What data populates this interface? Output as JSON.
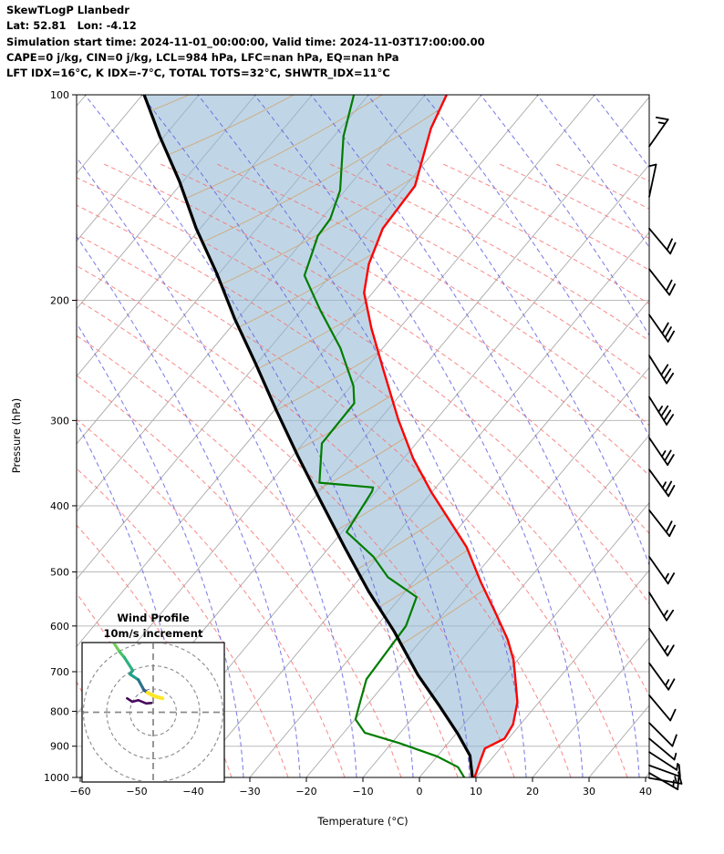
{
  "header": {
    "lines": [
      "SkewTLogP Llanbedr",
      "Lat: 52.81   Lon: -4.12",
      "Simulation start time: 2024-11-01_00:00:00, Valid time: 2024-11-03T17:00:00.00",
      "CAPE=0 j/kg, CIN=0 j/kg, LCL=984 hPa, LFC=nan hPa, EQ=nan hPa",
      "LFT IDX=16°C, K IDX=-7°C, TOTAL TOTS=32°C, SHWTR_IDX=11°C"
    ]
  },
  "colors": {
    "temperature": "#ff0000",
    "dewpoint": "#007d00",
    "parcel": "#000000",
    "shading": "#92b8d4",
    "dry_adiabat": "#f87070",
    "moist_adiabat": "#5d5de0",
    "isotherm": "#a9a9a9",
    "tan_line": "#cfa97e",
    "grid": "#bbbbbb"
  },
  "chart_data": {
    "type": "line",
    "subtype": "skewt-logp-sounding",
    "pressure_axis": {
      "label": "Pressure (hPa)",
      "ticks": [
        100,
        200,
        300,
        400,
        500,
        600,
        700,
        800,
        900,
        1000
      ],
      "range": [
        100,
        1000
      ],
      "scale": "log"
    },
    "temp_axis": {
      "label": "Temperature (°C)",
      "ticks": [
        -60,
        -50,
        -40,
        -30,
        -20,
        -10,
        0,
        10,
        20,
        30,
        40
      ],
      "range": [
        -60,
        40
      ]
    },
    "series": {
      "temperature": {
        "name": "temperature",
        "points": [
          [
            100,
            -96.2
          ],
          [
            112,
            -94.0
          ],
          [
            136,
            -88.3
          ],
          [
            157,
            -87.7
          ],
          [
            177,
            -84.9
          ],
          [
            195,
            -81.5
          ],
          [
            220,
            -74.9
          ],
          [
            252,
            -66.9
          ],
          [
            299,
            -56.7
          ],
          [
            341,
            -48.3
          ],
          [
            382,
            -40.1
          ],
          [
            460,
            -25.7
          ],
          [
            517,
            -18.1
          ],
          [
            573,
            -11.0
          ],
          [
            627,
            -4.9
          ],
          [
            672,
            -0.8
          ],
          [
            707,
            1.7
          ],
          [
            776,
            6.2
          ],
          [
            836,
            8.7
          ],
          [
            877,
            9.3
          ],
          [
            907,
            7.3
          ],
          [
            945,
            8.3
          ],
          [
            1005,
            9.9
          ]
        ]
      },
      "dewpoint": {
        "name": "dewpoint",
        "points": [
          [
            100,
            -112.6
          ],
          [
            115,
            -108.3
          ],
          [
            138,
            -100.9
          ],
          [
            152,
            -98.4
          ],
          [
            161,
            -98.1
          ],
          [
            171,
            -96.5
          ],
          [
            184,
            -94.6
          ],
          [
            207,
            -86.6
          ],
          [
            235,
            -77.5
          ],
          [
            267,
            -69.6
          ],
          [
            283,
            -66.9
          ],
          [
            324,
            -66.7
          ],
          [
            370,
            -61.3
          ],
          [
            376,
            -51.1
          ],
          [
            381,
            -50.7
          ],
          [
            437,
            -49.2
          ],
          [
            475,
            -40.8
          ],
          [
            509,
            -35.2
          ],
          [
            544,
            -27.2
          ],
          [
            600,
            -24.8
          ],
          [
            718,
            -23.9
          ],
          [
            774,
            -21.7
          ],
          [
            822,
            -19.9
          ],
          [
            860,
            -16.3
          ],
          [
            890,
            -8.8
          ],
          [
            932,
            0.1
          ],
          [
            966,
            5.3
          ],
          [
            1005,
            8.3
          ]
        ]
      },
      "parcel": {
        "name": "parcel",
        "points": [
          [
            100,
            -149.7
          ],
          [
            115,
            -140.8
          ],
          [
            134,
            -130.6
          ],
          [
            157,
            -120.7
          ],
          [
            183,
            -110.3
          ],
          [
            213,
            -100.5
          ],
          [
            248,
            -90.1
          ],
          [
            290,
            -79.6
          ],
          [
            338,
            -69.1
          ],
          [
            394,
            -58.3
          ],
          [
            460,
            -47.3
          ],
          [
            534,
            -36.5
          ],
          [
            611,
            -26.1
          ],
          [
            708,
            -15.4
          ],
          [
            786,
            -7.0
          ],
          [
            865,
            0.5
          ],
          [
            929,
            5.7
          ],
          [
            1005,
            9.6
          ]
        ]
      }
    },
    "wind_barbs": [
      {
        "p": 119,
        "angle": 55,
        "full": 1,
        "half": 1
      },
      {
        "p": 141,
        "angle": 78,
        "full": 0,
        "half": 1
      },
      {
        "p": 157,
        "angle": -50,
        "full": 2,
        "half": 0
      },
      {
        "p": 180,
        "angle": -52,
        "full": 2,
        "half": 0
      },
      {
        "p": 210,
        "angle": -55,
        "full": 3,
        "half": 0
      },
      {
        "p": 241,
        "angle": -58,
        "full": 3,
        "half": 0
      },
      {
        "p": 277,
        "angle": -58,
        "full": 3,
        "half": 1
      },
      {
        "p": 318,
        "angle": -56,
        "full": 2,
        "half": 1
      },
      {
        "p": 354,
        "angle": -54,
        "full": 2,
        "half": 1
      },
      {
        "p": 406,
        "angle": -52,
        "full": 2,
        "half": 0
      },
      {
        "p": 475,
        "angle": -55,
        "full": 1,
        "half": 1
      },
      {
        "p": 536,
        "angle": -58,
        "full": 1,
        "half": 1
      },
      {
        "p": 605,
        "angle": -56,
        "full": 1,
        "half": 1
      },
      {
        "p": 680,
        "angle": -54,
        "full": 1,
        "half": 1
      },
      {
        "p": 758,
        "angle": -50,
        "full": 1,
        "half": 0
      },
      {
        "p": 832,
        "angle": -45,
        "full": 1,
        "half": 0
      },
      {
        "p": 877,
        "angle": -40,
        "full": 0,
        "half": 1
      },
      {
        "p": 918,
        "angle": -33,
        "full": 0,
        "half": 1
      },
      {
        "p": 960,
        "angle": -20,
        "full": 1,
        "half": 0
      },
      {
        "p": 985,
        "angle": -30,
        "full": 1,
        "half": 1
      },
      {
        "p": 1002,
        "angle": -10,
        "full": 1,
        "half": 1
      }
    ],
    "hodograph": {
      "title": "Wind Profile",
      "subtitle": "10m/s increment",
      "ring_values_ms": [
        10,
        20,
        30
      ],
      "trace": [
        {
          "u": -17.6,
          "v": 30.8,
          "c": "#a0da39"
        },
        {
          "u": -14.4,
          "v": 26.0,
          "c": "#6ece58"
        },
        {
          "u": -12.4,
          "v": 23.6,
          "c": "#4ac16d"
        },
        {
          "u": -8.8,
          "v": 18.0,
          "c": "#2db27d"
        },
        {
          "u": -10.0,
          "v": 16.4,
          "c": "#21a585"
        },
        {
          "u": -6.4,
          "v": 14.0,
          "c": "#1fa088"
        },
        {
          "u": -4.0,
          "v": 9.6,
          "c": "#2c728e"
        },
        {
          "u": -2.4,
          "v": 8.4,
          "c": "#38588c"
        },
        {
          "u": 0.8,
          "v": 6.8,
          "c": "#fde725"
        },
        {
          "u": 4.0,
          "v": 6.0,
          "c": "#fde725"
        }
      ],
      "low_level_trace": {
        "color": "#46085c",
        "points": [
          [
            -11.2,
            6.0
          ],
          [
            -9.0,
            4.5
          ],
          [
            -6.4,
            5.2
          ],
          [
            -3.0,
            3.8
          ],
          [
            -0.8,
            4.0
          ]
        ]
      }
    }
  }
}
